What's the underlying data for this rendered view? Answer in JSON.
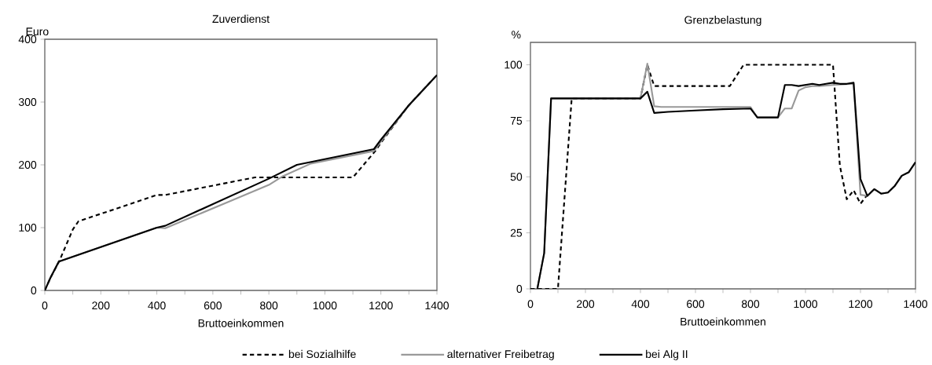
{
  "chart_data": [
    {
      "type": "line",
      "title": "Zuverdienst",
      "xlabel": "Bruttoeinkommen",
      "ylabel": "Euro",
      "xlim": [
        0,
        1400
      ],
      "ylim": [
        0,
        400
      ],
      "xticks": [
        0,
        {
          "value": 100,
          "label": null
        },
        200,
        {
          "value": 300,
          "label": null
        },
        400,
        {
          "value": 500,
          "label": null
        },
        600,
        {
          "value": 700,
          "label": null
        },
        800,
        {
          "value": 900,
          "label": null
        },
        1000,
        {
          "value": 1100,
          "label": null
        },
        1200,
        {
          "value": 1300,
          "label": null
        },
        1400
      ],
      "yticks": [
        0,
        100,
        200,
        300,
        400
      ],
      "legend": "bottom",
      "marker": "none",
      "series": [
        {
          "name": "bei Sozialhilfe",
          "color": "#000000",
          "line_style": "dashed",
          "x": [
            0,
            20,
            50,
            100,
            120,
            400,
            430,
            750,
            1100,
            1180,
            1200,
            1300,
            1400
          ],
          "values": [
            0,
            20,
            45,
            97,
            110,
            152,
            152,
            180,
            180,
            222,
            235,
            295,
            343
          ]
        },
        {
          "name": "alternativer Freibetrag",
          "color": "#999999",
          "line_style": "solid",
          "x": [
            0,
            20,
            50,
            400,
            430,
            800,
            850,
            950,
            1175,
            1200,
            1300,
            1400
          ],
          "values": [
            0,
            20,
            46,
            100,
            99,
            168,
            182,
            202,
            222,
            237,
            295,
            343
          ]
        },
        {
          "name": "bei Alg II",
          "color": "#000000",
          "line_style": "solid",
          "x": [
            0,
            20,
            50,
            400,
            430,
            800,
            900,
            1175,
            1200,
            1300,
            1400
          ],
          "values": [
            0,
            20,
            46,
            100,
            103,
            178,
            200,
            225,
            240,
            295,
            343
          ]
        }
      ]
    },
    {
      "type": "line",
      "title": "Grenzbelastung",
      "xlabel": "Bruttoeinkommen",
      "ylabel": "%",
      "xlim": [
        0,
        1400
      ],
      "ylim": [
        0,
        110
      ],
      "xticks": [
        0,
        {
          "value": 100,
          "label": null
        },
        200,
        {
          "value": 300,
          "label": null
        },
        400,
        {
          "value": 500,
          "label": null
        },
        600,
        {
          "value": 700,
          "label": null
        },
        800,
        {
          "value": 900,
          "label": null
        },
        1000,
        {
          "value": 1100,
          "label": null
        },
        1200,
        {
          "value": 1300,
          "label": null
        },
        1400
      ],
      "yticks": [
        0,
        25,
        50,
        75,
        100
      ],
      "marker": "none",
      "series": [
        {
          "color": "#000000",
          "line_style": "dashed",
          "x": [
            0,
            100,
            150,
            400,
            425,
            450,
            725,
            775,
            1100,
            1125,
            1150,
            1175,
            1200,
            1225
          ],
          "values": [
            0,
            0,
            85,
            85,
            100,
            90.5,
            90.5,
            100,
            100,
            55,
            40,
            44,
            38,
            42
          ]
        },
        {
          "color": "#999999",
          "line_style": "solid",
          "x": [
            25,
            50,
            75,
            400,
            425,
            450,
            475,
            800,
            825,
            900,
            925,
            950,
            975,
            1000,
            1025,
            1050,
            1100,
            1175,
            1200,
            1225,
            1250,
            1275,
            1300,
            1325,
            1350,
            1375,
            1400
          ],
          "values": [
            0,
            16,
            85,
            85,
            100.5,
            81.5,
            81.2,
            81.2,
            76.5,
            76.5,
            80.5,
            80.5,
            88.5,
            90,
            90.5,
            90.5,
            91,
            91.5,
            42,
            41.5,
            44.5,
            42.5,
            43,
            46,
            50.5,
            52,
            56.5
          ]
        },
        {
          "color": "#000000",
          "line_style": "solid",
          "x": [
            25,
            50,
            75,
            400,
            425,
            450,
            500,
            600,
            700,
            800,
            825,
            900,
            925,
            950,
            975,
            1000,
            1025,
            1050,
            1075,
            1100,
            1125,
            1150,
            1175,
            1200,
            1225,
            1250,
            1275,
            1300,
            1325,
            1350,
            1375,
            1400
          ],
          "values": [
            0,
            16,
            85,
            85,
            88,
            78.5,
            79,
            79.6,
            80.2,
            80.5,
            76.5,
            76.5,
            91,
            91,
            90.5,
            91,
            91.5,
            91,
            91.5,
            92,
            91.5,
            91.5,
            92,
            49,
            41.5,
            44.5,
            42.5,
            43,
            46,
            50.5,
            52,
            56.5
          ]
        }
      ]
    }
  ]
}
